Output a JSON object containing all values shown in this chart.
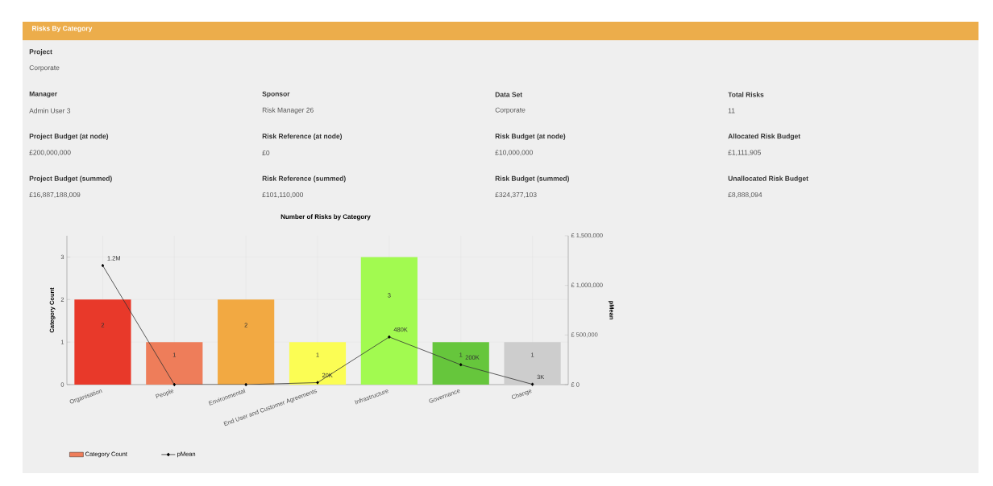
{
  "chart_data": [
    {
      "type": "other",
      "title": "Risks By Category",
      "annotations": [
        "Project",
        "Corporate",
        "Manager",
        "Admin User 3",
        "Sponsor",
        "Risk Manager 26",
        "Data Set",
        "Corporate",
        "Total Risks",
        "11",
        "Project Budget (at node)",
        "£200,000,000",
        "Risk Reference (at node)",
        "£0",
        "Risk Budget (at node)",
        "£10,000,000",
        "Allocated Risk Budget",
        "£1,111,905",
        "Project Budget (summed)",
        "£16,887,188,009",
        "Risk Reference (summed)",
        "£101,110,000",
        "Risk Budget (summed)",
        "£324,377,103",
        "Unallocated Risk Budget",
        "£8,888,094"
      ]
    },
    {
      "type": "bar",
      "title": "Number of Risks by Category",
      "ylabel": "Category Count",
      "y2label": "pMean",
      "categories": [
        "Organisation",
        "People",
        "Environmental",
        "End User and Customer Agreements",
        "Infrastructure",
        "Governance",
        "Change"
      ],
      "series": [
        {
          "name": "Category Count",
          "type": "bar",
          "color": "#ee7d5a",
          "colors": [
            "#e8392a",
            "#ee7d5a",
            "#f2a942",
            "#fbfd54",
            "#a2fa50",
            "#66c63c",
            "#cdcdcd"
          ],
          "values": [
            2,
            1,
            2,
            1,
            3,
            1,
            1
          ],
          "data_labels": true
        },
        {
          "name": "pMean",
          "type": "line",
          "axis": "y2",
          "color": "#333333",
          "marker": "diamond",
          "values": [
            1200000,
            0,
            0,
            20000,
            480000,
            200000,
            3000
          ],
          "value_labels": [
            "1.2M",
            null,
            null,
            "20K",
            "480K",
            "200K",
            "3K"
          ]
        }
      ],
      "ylim": [
        0,
        3.5
      ],
      "yticks": [
        0,
        1,
        2,
        3
      ],
      "y2lim": [
        0,
        1500000
      ],
      "y2ticks": [
        {
          "value": 0,
          "label": "£ 0"
        },
        {
          "value": 500000,
          "label": "£ 500,000"
        },
        {
          "value": 1000000,
          "label": "£ 1,000,000"
        },
        {
          "value": 1500000,
          "label": "£ 1,500,000"
        }
      ],
      "grid": true,
      "legend": "bottom left"
    }
  ]
}
